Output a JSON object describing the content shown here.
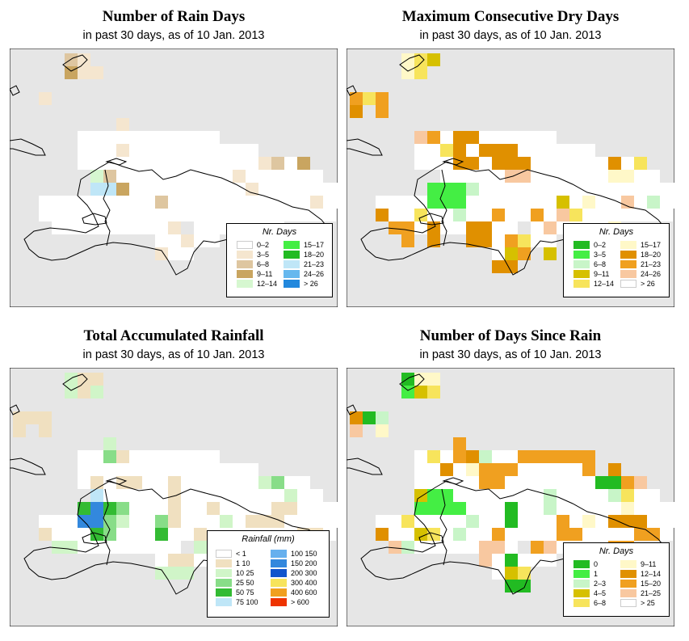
{
  "panels": [
    {
      "title": "Number of Rain Days",
      "subtitle": "in past 30 days, as of  10 Jan. 2013",
      "legend": {
        "title": "Nr. Days",
        "items": [
          {
            "label": "0–2",
            "color": "#ffffff"
          },
          {
            "label": "3–5",
            "color": "#f5e6cf"
          },
          {
            "label": "6–8",
            "color": "#dec6a0"
          },
          {
            "label": "9–11",
            "color": "#c9a560"
          },
          {
            "label": "12–14",
            "color": "#d6f7d0"
          },
          {
            "label": "15–17",
            "color": "#44ee44"
          },
          {
            "label": "18–20",
            "color": "#22bb22"
          },
          {
            "label": "21–23",
            "color": "#bfe6f7"
          },
          {
            "label": "24–26",
            "color": "#66b8ee"
          },
          {
            "label": "> 26",
            "color": "#2288dd"
          }
        ]
      }
    },
    {
      "title": "Maximum Consecutive Dry Days",
      "subtitle": "in past 30 days, as of  10 Jan. 2013",
      "legend": {
        "title": "Nr. Days",
        "items": [
          {
            "label": "0–2",
            "color": "#22bb22"
          },
          {
            "label": "3–5",
            "color": "#44ee44"
          },
          {
            "label": "6–8",
            "color": "#c8f5c8"
          },
          {
            "label": "9–11",
            "color": "#d6c000"
          },
          {
            "label": "12–14",
            "color": "#f7e45c"
          },
          {
            "label": "15–17",
            "color": "#fff8c8"
          },
          {
            "label": "18–20",
            "color": "#e09000"
          },
          {
            "label": "21–23",
            "color": "#f0a020"
          },
          {
            "label": "24–26",
            "color": "#f8c8a0"
          },
          {
            "label": "> 26",
            "color": "#ffffff"
          }
        ]
      }
    },
    {
      "title": "Total Accumulated Rainfall",
      "subtitle": "in past 30 days, as of  10 Jan. 2013",
      "legend": {
        "title": "Rainfall (mm)",
        "items": [
          {
            "label": "< 1",
            "color": "#ffffff"
          },
          {
            "label": "1    10",
            "color": "#f0e0c0"
          },
          {
            "label": "10    25",
            "color": "#d0f5c8"
          },
          {
            "label": "25    50",
            "color": "#88dd88"
          },
          {
            "label": "50    75",
            "color": "#33bb33"
          },
          {
            "label": "75    100",
            "color": "#bfe6f7"
          },
          {
            "label": "100    150",
            "color": "#66b0ee"
          },
          {
            "label": "150    200",
            "color": "#3388dd"
          },
          {
            "label": "200    300",
            "color": "#1155cc"
          },
          {
            "label": "300    400",
            "color": "#f7e45c"
          },
          {
            "label": "400    600",
            "color": "#f0a020"
          },
          {
            "label": "> 600",
            "color": "#ee3300"
          }
        ]
      }
    },
    {
      "title": "Number of Days Since Rain",
      "subtitle": "in past 30 days, as of  10 Jan. 2013",
      "legend": {
        "title": "Nr. Days",
        "items": [
          {
            "label": "0",
            "color": "#22bb22"
          },
          {
            "label": "1",
            "color": "#44ee44"
          },
          {
            "label": "2–3",
            "color": "#c8f5c8"
          },
          {
            "label": "4–5",
            "color": "#d6c000"
          },
          {
            "label": "6–8",
            "color": "#f7e45c"
          },
          {
            "label": "9–11",
            "color": "#fff8c8"
          },
          {
            "label": "12–14",
            "color": "#e09000"
          },
          {
            "label": "15–20",
            "color": "#f0a020"
          },
          {
            "label": "21–25",
            "color": "#f8c8a0"
          },
          {
            "label": "> 25",
            "color": "#ffffff"
          }
        ]
      }
    }
  ]
}
